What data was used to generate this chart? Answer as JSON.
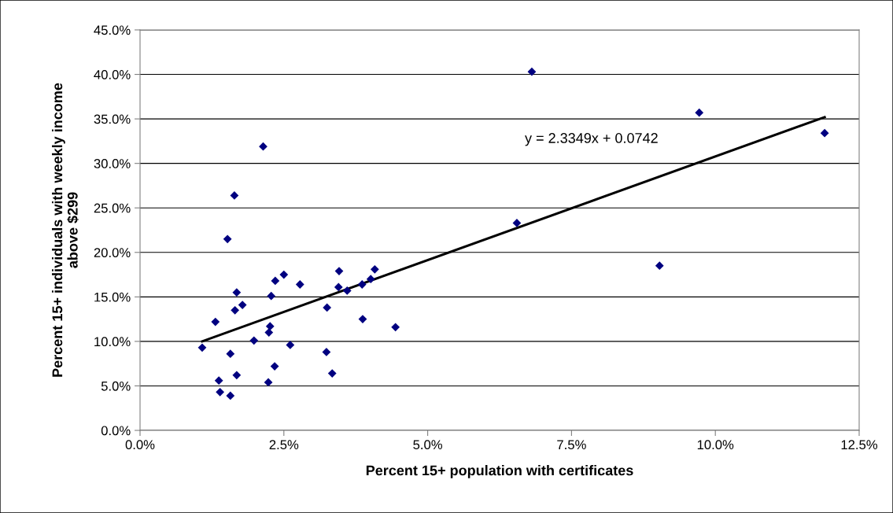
{
  "chart_data": {
    "type": "scatter",
    "xlabel": "Percent 15+ population with certificates",
    "ylabel": "Percent 15+ individuals with weekly income\nabove $299",
    "series": [
      {
        "color": "#000080",
        "marker": "diamond",
        "x": [
          1.08,
          1.31,
          1.37,
          1.39,
          1.52,
          1.57,
          1.57,
          1.64,
          1.65,
          1.68,
          1.68,
          1.78,
          1.98,
          2.14,
          2.23,
          2.24,
          2.26,
          2.28,
          2.34,
          2.35,
          2.5,
          2.61,
          2.78,
          3.24,
          3.25,
          3.34,
          3.45,
          3.46,
          3.6,
          3.86,
          3.87,
          4.01,
          4.08,
          4.44,
          6.55,
          6.81,
          9.03,
          9.72,
          11.9
        ],
        "values": [
          9.3,
          12.2,
          5.6,
          4.3,
          21.5,
          8.6,
          3.9,
          26.4,
          13.5,
          15.5,
          6.2,
          14.1,
          10.1,
          31.9,
          5.4,
          11.0,
          11.7,
          15.1,
          7.2,
          16.8,
          17.5,
          9.6,
          16.4,
          8.8,
          13.8,
          6.4,
          16.1,
          17.9,
          15.7,
          16.4,
          12.5,
          17.0,
          18.1,
          11.6,
          23.3,
          40.3,
          18.5,
          35.7,
          33.4
        ]
      },
      {
        "type": "line",
        "color": "#000000",
        "line_style": "solid",
        "x": [
          1.08,
          11.9
        ],
        "values": [
          10.0,
          35.2
        ]
      }
    ],
    "annotations": [
      "y = 2.3349x + 0.0742"
    ],
    "xlim": [
      0,
      12.5
    ],
    "xticks": [
      {
        "value": 0,
        "label": "0.0%"
      },
      {
        "value": 2.5,
        "label": "2.5%"
      },
      {
        "value": 5,
        "label": "5.0%"
      },
      {
        "value": 7.5,
        "label": "7.5%"
      },
      {
        "value": 10,
        "label": "10.0%"
      },
      {
        "value": 12.5,
        "label": "12.5%"
      }
    ],
    "ylim": [
      0,
      45
    ],
    "yticks": [
      {
        "value": 0,
        "label": "0.0%"
      },
      {
        "value": 5,
        "label": "5.0%"
      },
      {
        "value": 10,
        "label": "10.0%"
      },
      {
        "value": 15,
        "label": "15.0%"
      },
      {
        "value": 20,
        "label": "20.0%"
      },
      {
        "value": 25,
        "label": "25.0%"
      },
      {
        "value": 30,
        "label": "30.0%"
      },
      {
        "value": 35,
        "label": "35.0%"
      },
      {
        "value": 40,
        "label": "40.0%"
      },
      {
        "value": 45,
        "label": "45.0%"
      }
    ],
    "grid": "y",
    "legend": false
  }
}
